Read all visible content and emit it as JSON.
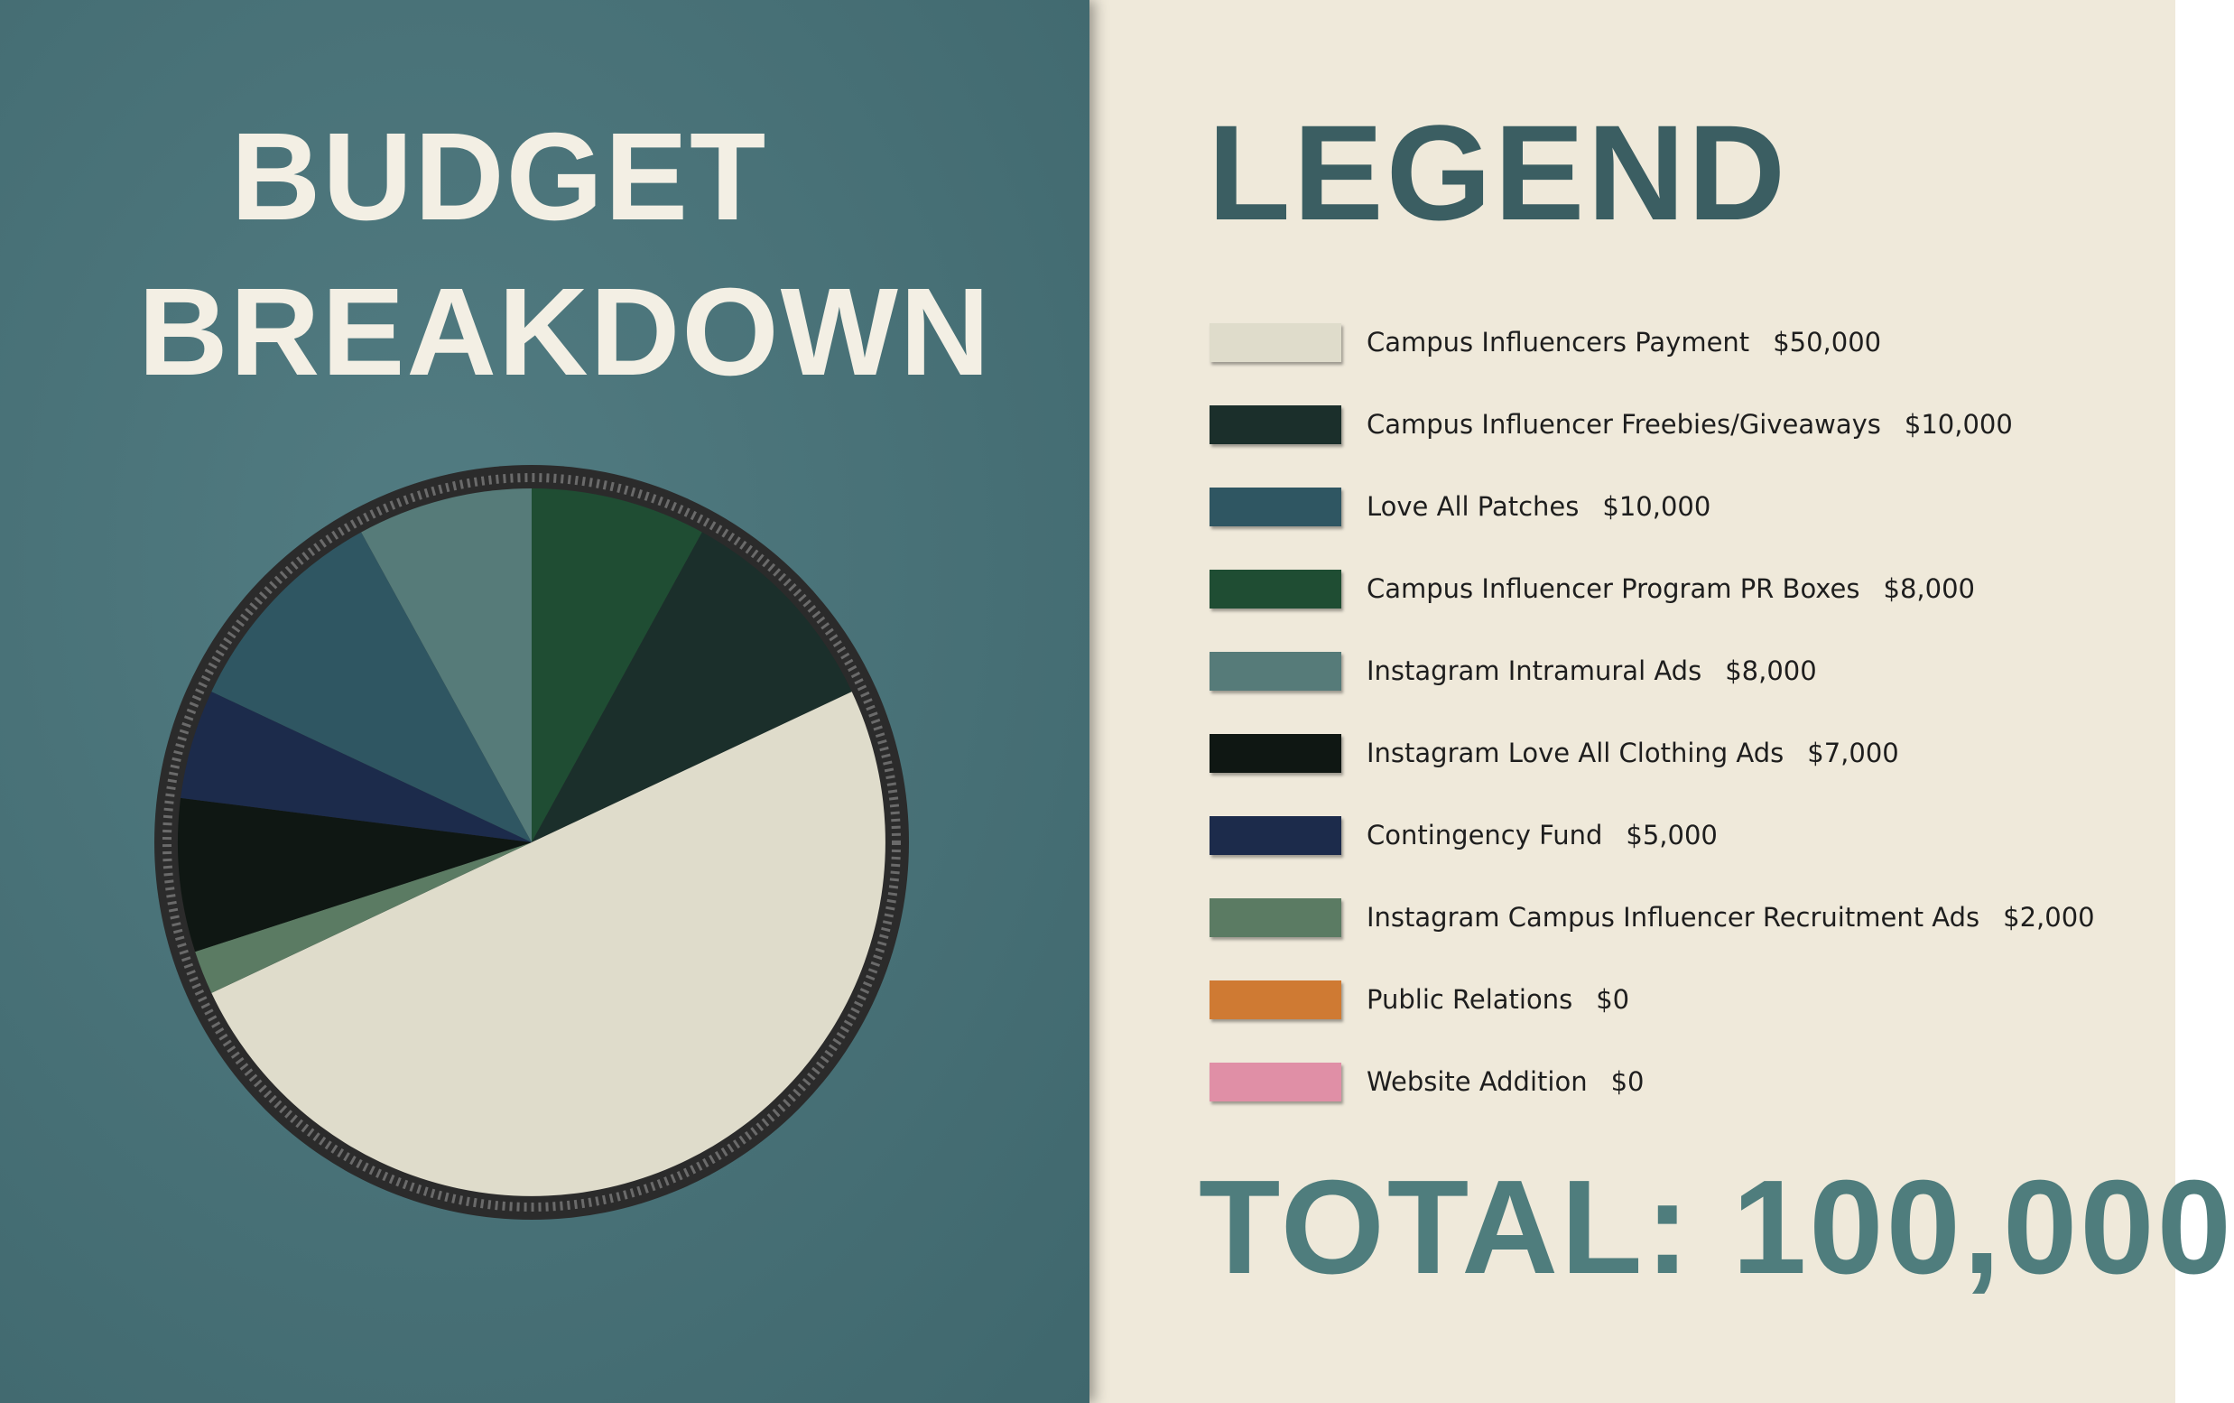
{
  "chart_data": {
    "type": "pie",
    "title": "BUDGET BREAKDOWN",
    "legend_title": "LEGEND",
    "total_text": "TOTAL: 100,000",
    "categories": [
      "Campus Influencers Payment",
      "Campus Influencer Freebies/Giveaways",
      "Love All Patches",
      "Campus Influencer Program PR Boxes",
      "Instagram Intramural Ads",
      "Instagram Love All Clothing Ads",
      "Contingency Fund",
      "Instagram Campus Influencer Recruitment Ads",
      "Public Relations",
      "Website Addition"
    ],
    "values": [
      50000,
      10000,
      10000,
      8000,
      8000,
      7000,
      5000,
      2000,
      0,
      0
    ],
    "value_labels": [
      "$50,000",
      "$10,000",
      "$10,000",
      "$8,000",
      "$8,000",
      "$7,000",
      "$5,000",
      "$2,000",
      "$0",
      "$0"
    ],
    "colors": [
      "#dfdccb",
      "#1b2f2b",
      "#2f5662",
      "#1f4d33",
      "#567b79",
      "#0f1713",
      "#1c2b4b",
      "#5b7b63",
      "#cf7a33",
      "#e08fa6"
    ]
  }
}
